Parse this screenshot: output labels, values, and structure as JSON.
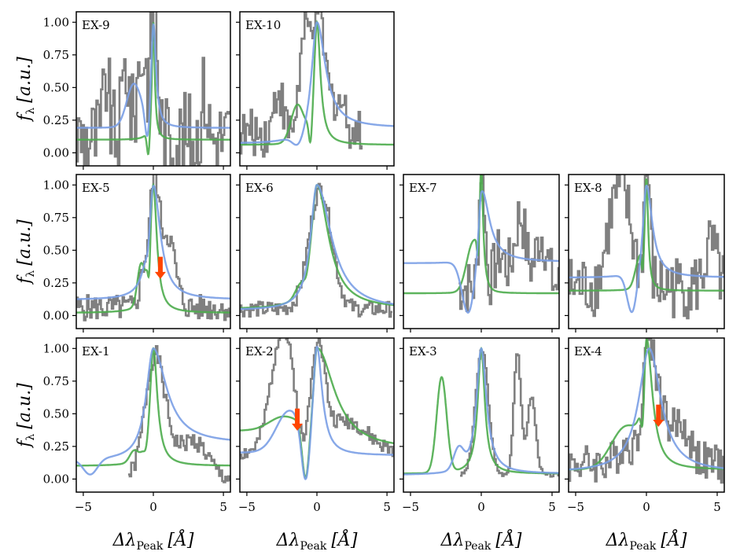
{
  "figure": {
    "x_axis_title": "Δλ",
    "x_axis_title_sub": "Peak",
    "x_axis_unit": "[Å]",
    "y_axis_title": "f",
    "y_axis_title_sub": "λ",
    "y_axis_unit": "[a.u.]"
  },
  "chart_data": [
    {
      "type": "line",
      "label": "EX-9",
      "xlim": [
        -5.5,
        5.5
      ],
      "ylim": [
        -0.1,
        1.08
      ],
      "xticks": [
        -5,
        0,
        5
      ],
      "yticks": [
        0.0,
        0.25,
        0.5,
        0.75,
        1.0
      ],
      "data_line": {
        "name": "observed spectrum",
        "color": "#808080",
        "seed": 9,
        "noise": 0.35,
        "base": 0.12,
        "peaks": [
          [
            0.0,
            1.0,
            0.25
          ],
          [
            -2.0,
            0.55,
            0.25
          ],
          [
            -1.1,
            0.45,
            0.2
          ],
          [
            -0.7,
            0.55,
            0.2
          ],
          [
            -3.4,
            0.45,
            0.2
          ],
          [
            3.6,
            0.35,
            0.2
          ]
        ]
      },
      "blue_model": {
        "name": "model blue",
        "color": "#7a9fe6",
        "base_left": 0.19,
        "base_right": 0.19,
        "center": 0.0,
        "width_left": 0.22,
        "width_right": 0.22,
        "peak": 1.0,
        "bump": [
          -1.4,
          0.32,
          0.5
        ],
        "dip": [
          -0.4,
          -0.28,
          0.18
        ]
      },
      "green_model": {
        "name": "model green",
        "color": "#4dac4d",
        "base_left": 0.1,
        "base_right": 0.1,
        "center": 0.0,
        "width_left": 0.12,
        "width_right": 0.12,
        "peak": 1.0,
        "bump": null,
        "dip": [
          -0.35,
          -0.2,
          0.1
        ]
      },
      "arrows": []
    },
    {
      "type": "line",
      "label": "EX-10",
      "xlim": [
        -5.5,
        5.5
      ],
      "ylim": [
        -0.1,
        1.08
      ],
      "xticks": [
        -5,
        0,
        5
      ],
      "yticks": [
        0.0,
        0.25,
        0.5,
        0.75,
        1.0
      ],
      "data_line": {
        "name": "observed spectrum",
        "color": "#808080",
        "seed": 10,
        "noise": 0.18,
        "base": 0.15,
        "peaks": [
          [
            0.0,
            0.95,
            0.5
          ],
          [
            -1.0,
            0.6,
            0.35
          ],
          [
            -2.8,
            0.35,
            0.3
          ],
          [
            1.5,
            0.25,
            0.5
          ]
        ],
        "x_end": 3.2
      },
      "blue_model": {
        "name": "model blue",
        "color": "#7a9fe6",
        "base_left": 0.07,
        "base_right": 0.19,
        "center": 0.0,
        "width_left": 0.45,
        "width_right": 0.75,
        "peak": 1.0,
        "bump": null,
        "dip": [
          -1.3,
          -0.1,
          0.4
        ]
      },
      "green_model": {
        "name": "model green",
        "color": "#4dac4d",
        "base_left": 0.06,
        "base_right": 0.06,
        "center": 0.0,
        "width_left": 0.25,
        "width_right": 0.3,
        "peak": 1.0,
        "bump": [
          -1.4,
          0.28,
          0.45
        ],
        "dip": [
          -0.45,
          -0.22,
          0.12
        ]
      },
      "arrows": []
    },
    {
      "type": "line",
      "label": "EX-5",
      "xlim": [
        -5.5,
        5.5
      ],
      "ylim": [
        -0.1,
        1.08
      ],
      "xticks": [
        -5,
        0,
        5
      ],
      "yticks": [
        0.0,
        0.25,
        0.5,
        0.75,
        1.0
      ],
      "data_line": {
        "name": "observed spectrum",
        "color": "#808080",
        "seed": 5,
        "noise": 0.1,
        "base": 0.06,
        "peaks": [
          [
            0.0,
            0.95,
            0.35
          ],
          [
            1.0,
            0.55,
            0.5
          ],
          [
            -0.8,
            0.25,
            0.25
          ]
        ]
      },
      "blue_model": {
        "name": "model blue",
        "color": "#7a9fe6",
        "base_left": 0.12,
        "base_right": 0.12,
        "center": 0.0,
        "width_left": 0.45,
        "width_right": 0.6,
        "peak": 1.0,
        "bump": null,
        "dip": [
          -0.35,
          -0.12,
          0.15
        ]
      },
      "green_model": {
        "name": "model green",
        "color": "#4dac4d",
        "base_left": 0.02,
        "base_right": 0.02,
        "center": 0.0,
        "width_left": 0.3,
        "width_right": 0.3,
        "peak": 1.0,
        "bump": [
          -0.9,
          0.28,
          0.25
        ],
        "dip": [
          -0.3,
          -0.2,
          0.08
        ]
      },
      "arrows": [
        {
          "x": 0.5,
          "y_top": 0.45,
          "y_tip": 0.28
        }
      ]
    },
    {
      "type": "line",
      "label": "EX-6",
      "xlim": [
        -5.5,
        5.5
      ],
      "ylim": [
        -0.1,
        1.08
      ],
      "xticks": [
        -5,
        0,
        5
      ],
      "yticks": [
        0.0,
        0.25,
        0.5,
        0.75,
        1.0
      ],
      "data_line": {
        "name": "observed spectrum",
        "color": "#808080",
        "seed": 6,
        "noise": 0.06,
        "base": 0.05,
        "peaks": [
          [
            0.2,
            0.92,
            0.8
          ]
        ]
      },
      "blue_model": {
        "name": "model blue",
        "color": "#7a9fe6",
        "base_left": 0.04,
        "base_right": 0.04,
        "center": 0.0,
        "width_left": 0.55,
        "width_right": 1.25,
        "peak": 1.0,
        "bump": null,
        "dip": null
      },
      "green_model": {
        "name": "model green",
        "color": "#4dac4d",
        "base_left": 0.05,
        "base_right": 0.05,
        "center": 0.0,
        "width_left": 0.5,
        "width_right": 1.0,
        "peak": 1.0,
        "bump": [
          -1.3,
          0.06,
          0.3
        ],
        "dip": [
          -0.75,
          -0.04,
          0.15
        ]
      },
      "arrows": []
    },
    {
      "type": "line",
      "label": "EX-7",
      "xlim": [
        -5.5,
        5.5
      ],
      "ylim": [
        -0.1,
        1.08
      ],
      "xticks": [
        -5,
        0,
        5
      ],
      "yticks": [
        0.0,
        0.25,
        0.5,
        0.75,
        1.0
      ],
      "data_line": {
        "name": "observed spectrum",
        "color": "#808080",
        "seed": 7,
        "noise": 0.22,
        "base": 0.22,
        "peaks": [
          [
            0.0,
            0.95,
            0.2
          ],
          [
            2.7,
            0.55,
            0.4
          ],
          [
            4.2,
            0.4,
            0.4
          ],
          [
            1.3,
            0.25,
            0.4
          ]
        ],
        "x_start": -1.6
      },
      "blue_model": {
        "name": "model blue",
        "color": "#7a9fe6",
        "base_left": 0.4,
        "base_right": 0.41,
        "center": 0.0,
        "width_left": 0.25,
        "width_right": 0.65,
        "peak": 1.0,
        "bump": null,
        "dip": [
          -0.9,
          -0.42,
          0.45
        ]
      },
      "green_model": {
        "name": "model green",
        "color": "#4dac4d",
        "base_left": 0.17,
        "base_right": 0.17,
        "center": 0.0,
        "width_left": 0.15,
        "width_right": 0.15,
        "peak": 1.0,
        "bump": [
          -0.6,
          0.35,
          0.45
        ],
        "dip": [
          -0.22,
          -0.2,
          0.08
        ]
      },
      "arrows": []
    },
    {
      "type": "line",
      "label": "EX-8",
      "xlim": [
        -5.5,
        5.5
      ],
      "ylim": [
        -0.1,
        1.08
      ],
      "xticks": [
        -5,
        0,
        5
      ],
      "yticks": [
        0.0,
        0.25,
        0.5,
        0.75,
        1.0
      ],
      "data_line": {
        "name": "observed spectrum",
        "color": "#808080",
        "seed": 8,
        "noise": 0.25,
        "base": 0.22,
        "peaks": [
          [
            0.0,
            0.95,
            0.2
          ],
          [
            -1.6,
            0.6,
            0.6
          ],
          [
            -2.5,
            0.4,
            0.5
          ],
          [
            4.5,
            0.3,
            0.4
          ]
        ]
      },
      "blue_model": {
        "name": "model blue",
        "color": "#7a9fe6",
        "base_left": 0.29,
        "base_right": 0.29,
        "center": 0.0,
        "width_left": 0.3,
        "width_right": 0.5,
        "peak": 1.0,
        "bump": null,
        "dip": [
          -1.0,
          -0.32,
          0.35
        ]
      },
      "green_model": {
        "name": "model green",
        "color": "#4dac4d",
        "base_left": 0.19,
        "base_right": 0.19,
        "center": 0.0,
        "width_left": 0.15,
        "width_right": 0.15,
        "peak": 1.0,
        "bump": [
          -0.5,
          0.2,
          0.3
        ],
        "dip": [
          -0.25,
          -0.18,
          0.08
        ]
      },
      "arrows": []
    },
    {
      "type": "line",
      "label": "EX-1",
      "xlim": [
        -5.5,
        5.5
      ],
      "ylim": [
        -0.1,
        1.08
      ],
      "xticks": [
        -5,
        0,
        5
      ],
      "yticks": [
        0.0,
        0.25,
        0.5,
        0.75,
        1.0
      ],
      "data_line": {
        "name": "observed spectrum",
        "color": "#808080",
        "seed": 1,
        "noise": 0.07,
        "base": 0.0,
        "peaks": [
          [
            0.05,
            0.9,
            0.7
          ],
          [
            2.0,
            0.2,
            1.2
          ],
          [
            3.2,
            0.15,
            0.8
          ]
        ],
        "x_start": -1.8
      },
      "blue_model": {
        "name": "model blue",
        "color": "#7a9fe6",
        "base_left": 0.14,
        "base_right": 0.27,
        "center": 0.0,
        "width_left": 0.6,
        "width_right": 1.15,
        "peak": 1.0,
        "bump": null,
        "dip": [
          -4.5,
          -0.12,
          0.5
        ]
      },
      "green_model": {
        "name": "model green",
        "color": "#4dac4d",
        "base_left": 0.1,
        "base_right": 0.1,
        "center": 0.0,
        "width_left": 0.3,
        "width_right": 0.35,
        "peak": 1.0,
        "bump": [
          -1.4,
          0.08,
          0.3
        ],
        "dip": [
          -0.5,
          -0.08,
          0.15
        ]
      },
      "arrows": []
    },
    {
      "type": "line",
      "label": "EX-2",
      "xlim": [
        -5.5,
        5.5
      ],
      "ylim": [
        -0.1,
        1.08
      ],
      "xticks": [
        -5,
        0,
        5
      ],
      "yticks": [
        0.0,
        0.25,
        0.5,
        0.75,
        1.0
      ],
      "data_line": {
        "name": "observed spectrum",
        "color": "#808080",
        "seed": 2,
        "noise": 0.06,
        "base": 0.2,
        "peaks": [
          [
            0.0,
            0.78,
            0.5
          ],
          [
            -2.5,
            0.95,
            0.8
          ],
          [
            2.0,
            0.25,
            1.5
          ]
        ],
        "dip": [
          -1.0,
          -0.2,
          0.3
        ]
      },
      "blue_model": {
        "name": "model blue",
        "color": "#7a9fe6",
        "base_left": 0.2,
        "base_right": 0.18,
        "center": 0.0,
        "width_left": 0.35,
        "width_right": 0.45,
        "peak": 1.0,
        "bump": [
          -2.0,
          0.3,
          0.9
        ],
        "dip": [
          -0.8,
          -0.45,
          0.3
        ]
      },
      "green_model": {
        "name": "model green",
        "color": "#4dac4d",
        "base_left": 0.37,
        "base_right": 0.22,
        "center": 0.0,
        "width_left": 0.3,
        "width_right": 1.5,
        "peak": 1.0,
        "bump": [
          -2.4,
          0.1,
          1.0
        ],
        "dip": [
          -0.8,
          -0.45,
          0.25
        ]
      },
      "arrows": [
        {
          "x": -1.4,
          "y_top": 0.54,
          "y_tip": 0.37
        }
      ]
    },
    {
      "type": "line",
      "label": "EX-3",
      "xlim": [
        -5.5,
        5.5
      ],
      "ylim": [
        -0.1,
        1.08
      ],
      "xticks": [
        -5,
        0,
        5
      ],
      "yticks": [
        0.0,
        0.25,
        0.5,
        0.75,
        1.0
      ],
      "data_line": {
        "name": "observed spectrum",
        "color": "#808080",
        "seed": 3,
        "noise": 0.015,
        "base": 0.03,
        "peaks": [
          [
            0.0,
            0.96,
            0.45
          ],
          [
            2.5,
            0.95,
            0.25
          ],
          [
            3.5,
            0.6,
            0.3
          ]
        ],
        "x_start": -1.5
      },
      "blue_model": {
        "name": "model blue",
        "color": "#7a9fe6",
        "base_left": 0.03,
        "base_right": 0.04,
        "center": 0.0,
        "width_left": 0.42,
        "width_right": 0.45,
        "peak": 1.0,
        "bump": [
          -1.6,
          0.16,
          0.35
        ],
        "dip": null
      },
      "green_model": {
        "name": "model green",
        "color": "#4dac4d",
        "base_left": 0.04,
        "base_right": 0.04,
        "center": 0.0,
        "width_left": 0.3,
        "width_right": 0.3,
        "peak": 1.0,
        "bump": [
          -2.8,
          0.73,
          0.35
        ],
        "dip": null
      },
      "arrows": []
    },
    {
      "type": "line",
      "label": "EX-4",
      "xlim": [
        -5.5,
        5.5
      ],
      "ylim": [
        -0.1,
        1.08
      ],
      "xticks": [
        -5,
        0,
        5
      ],
      "yticks": [
        0.0,
        0.25,
        0.5,
        0.75,
        1.0
      ],
      "data_line": {
        "name": "observed spectrum",
        "color": "#808080",
        "seed": 4,
        "noise": 0.15,
        "base": 0.12,
        "peaks": [
          [
            0.0,
            0.75,
            0.35
          ],
          [
            0.7,
            0.55,
            0.5
          ],
          [
            2.3,
            0.3,
            0.7
          ],
          [
            -1.4,
            0.15,
            0.6
          ]
        ]
      },
      "blue_model": {
        "name": "model blue",
        "color": "#7a9fe6",
        "base_left": 0.05,
        "base_right": 0.05,
        "center": 0.2,
        "width_left": 0.9,
        "width_right": 1.0,
        "peak": 1.0,
        "bump": null,
        "dip": null
      },
      "green_model": {
        "name": "model green",
        "color": "#4dac4d",
        "base_left": 0.07,
        "base_right": 0.07,
        "center": 0.0,
        "width_left": 0.3,
        "width_right": 0.5,
        "peak": 1.0,
        "bump": [
          -1.5,
          0.3,
          1.0
        ],
        "dip": [
          -0.25,
          -0.3,
          0.12
        ]
      },
      "arrows": [
        {
          "x": 0.85,
          "y_top": 0.57,
          "y_tip": 0.4
        }
      ]
    }
  ]
}
